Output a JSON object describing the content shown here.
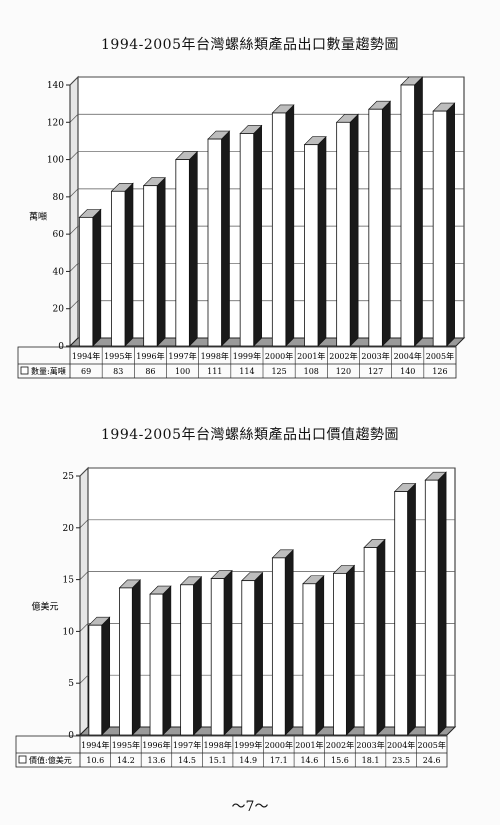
{
  "chart_data": [
    {
      "type": "bar",
      "title": "1994-2005年台灣螺絲類產品出口數量趨勢圖",
      "ylabel": "萬噸",
      "categories": [
        "1994年",
        "1995年",
        "1996年",
        "1997年",
        "1998年",
        "1999年",
        "2000年",
        "2001年",
        "2002年",
        "2003年",
        "2004年",
        "2005年"
      ],
      "series": [
        {
          "name": "數量:萬噸",
          "values": [
            69,
            83,
            86,
            100,
            111,
            114,
            125,
            108,
            120,
            127,
            140,
            126
          ]
        }
      ],
      "ylim": [
        0,
        140
      ],
      "yticks": [
        0,
        20,
        40,
        60,
        80,
        100,
        120,
        140
      ],
      "data_table_labels": [
        "69",
        "83",
        "86",
        "100",
        "111",
        "114",
        "125",
        "108",
        "120",
        "127",
        "140",
        "126"
      ],
      "grid": true,
      "legend": "data-table"
    },
    {
      "type": "bar",
      "title": "1994-2005年台灣螺絲類產品出口價值趨勢圖",
      "ylabel": "億美元",
      "categories": [
        "1994年",
        "1995年",
        "1996年",
        "1997年",
        "1998年",
        "1999年",
        "2000年",
        "2001年",
        "2002年",
        "2003年",
        "2004年",
        "2005年"
      ],
      "series": [
        {
          "name": "價值:億美元",
          "values": [
            10.6,
            14.2,
            13.6,
            14.5,
            15.1,
            14.9,
            17.1,
            14.6,
            15.6,
            18.1,
            23.5,
            24.6
          ]
        }
      ],
      "ylim": [
        0,
        25
      ],
      "yticks": [
        0,
        5,
        10,
        15,
        20,
        25
      ],
      "data_table_labels": [
        "10.6",
        "14.2",
        "13.6",
        "14.5",
        "15.1",
        "14.9",
        "17.1",
        "14.6",
        "15.6",
        "18.1",
        "23.5",
        "24.6"
      ],
      "grid": true,
      "legend": "data-table"
    }
  ],
  "page": {
    "number": "～7～"
  }
}
